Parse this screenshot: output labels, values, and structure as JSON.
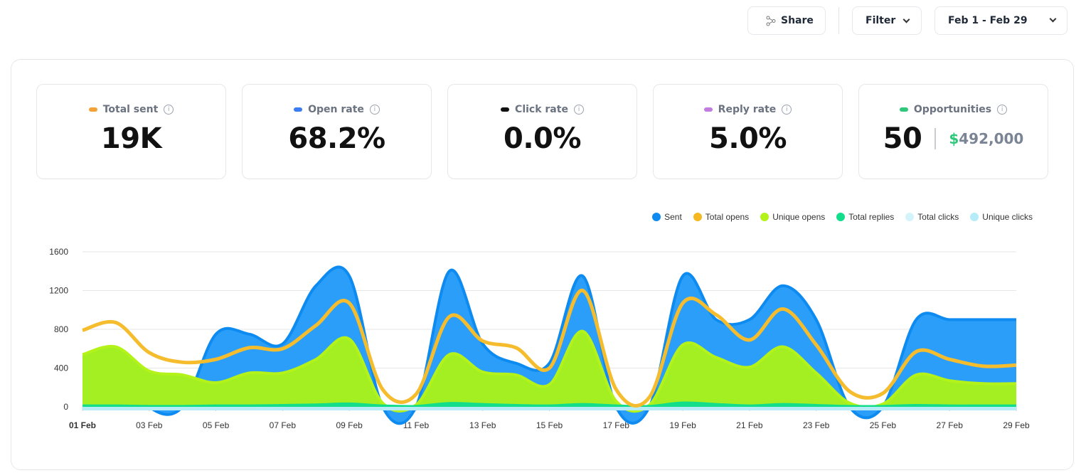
{
  "toolbar": {
    "share_label": "Share",
    "filter_label": "Filter",
    "date_range": "Feb 1 - Feb 29"
  },
  "stats": [
    {
      "label": "Total sent",
      "value": "19K",
      "color": "#f4a13a"
    },
    {
      "label": "Open rate",
      "value": "68.2%",
      "color": "#3b7cf0"
    },
    {
      "label": "Click rate",
      "value": "0.0%",
      "color": "#111111"
    },
    {
      "label": "Reply rate",
      "value": "5.0%",
      "color": "#c27ce0"
    },
    {
      "label": "Opportunities",
      "value": "50",
      "color": "#2fc77a",
      "amount_currency": "$",
      "amount": "492,000"
    }
  ],
  "chart_data": {
    "type": "area",
    "x": [
      "01 Feb",
      "02 Feb",
      "03 Feb",
      "04 Feb",
      "05 Feb",
      "06 Feb",
      "07 Feb",
      "08 Feb",
      "09 Feb",
      "10 Feb",
      "11 Feb",
      "12 Feb",
      "13 Feb",
      "14 Feb",
      "15 Feb",
      "16 Feb",
      "17 Feb",
      "18 Feb",
      "19 Feb",
      "20 Feb",
      "21 Feb",
      "22 Feb",
      "23 Feb",
      "24 Feb",
      "25 Feb",
      "26 Feb",
      "27 Feb",
      "28 Feb",
      "29 Feb"
    ],
    "xticks": [
      "01 Feb",
      "03 Feb",
      "05 Feb",
      "07 Feb",
      "09 Feb",
      "11 Feb",
      "13 Feb",
      "15 Feb",
      "17 Feb",
      "19 Feb",
      "21 Feb",
      "23 Feb",
      "25 Feb",
      "27 Feb",
      "29 Feb"
    ],
    "yticks": [
      "0",
      "400",
      "800",
      "1200",
      "1600"
    ],
    "ylim": [
      0,
      1600
    ],
    "grid": true,
    "legend_position": "top-right",
    "series": [
      {
        "name": "Sent",
        "color": "#0d8bf0",
        "kind": "area",
        "values": [
          500,
          500,
          0,
          0,
          750,
          750,
          650,
          1250,
          1350,
          0,
          0,
          1400,
          650,
          450,
          450,
          1350,
          0,
          0,
          1350,
          900,
          900,
          1250,
          900,
          0,
          0,
          900,
          900,
          900,
          900
        ]
      },
      {
        "name": "Total opens",
        "color": "#f5b820",
        "kind": "line",
        "values": [
          790,
          870,
          560,
          460,
          490,
          610,
          600,
          840,
          1070,
          180,
          130,
          930,
          680,
          610,
          400,
          1200,
          180,
          100,
          1070,
          950,
          690,
          1010,
          640,
          160,
          140,
          570,
          490,
          420,
          430
        ]
      },
      {
        "name": "Unique opens",
        "color": "#b3f31a",
        "kind": "area",
        "values": [
          540,
          620,
          370,
          330,
          250,
          350,
          350,
          490,
          700,
          40,
          20,
          540,
          360,
          330,
          230,
          780,
          60,
          20,
          640,
          510,
          410,
          620,
          350,
          40,
          30,
          330,
          270,
          240,
          240
        ]
      },
      {
        "name": "Total replies",
        "color": "#12dd8a",
        "kind": "area",
        "values": [
          10,
          10,
          5,
          5,
          10,
          10,
          15,
          20,
          30,
          10,
          5,
          35,
          25,
          15,
          10,
          25,
          10,
          5,
          40,
          25,
          10,
          25,
          15,
          5,
          5,
          15,
          10,
          10,
          10
        ]
      },
      {
        "name": "Total clicks",
        "color": "#d2f4fa",
        "kind": "area",
        "values": [
          0,
          0,
          0,
          0,
          0,
          0,
          0,
          0,
          0,
          0,
          0,
          0,
          0,
          0,
          0,
          0,
          0,
          0,
          0,
          0,
          0,
          0,
          0,
          0,
          0,
          0,
          0,
          0,
          0
        ]
      },
      {
        "name": "Unique clicks",
        "color": "#b5ecf7",
        "kind": "area",
        "values": [
          0,
          0,
          0,
          0,
          0,
          0,
          0,
          0,
          0,
          0,
          0,
          0,
          0,
          0,
          0,
          0,
          0,
          0,
          0,
          0,
          0,
          0,
          0,
          0,
          0,
          0,
          0,
          0,
          0
        ]
      }
    ]
  }
}
